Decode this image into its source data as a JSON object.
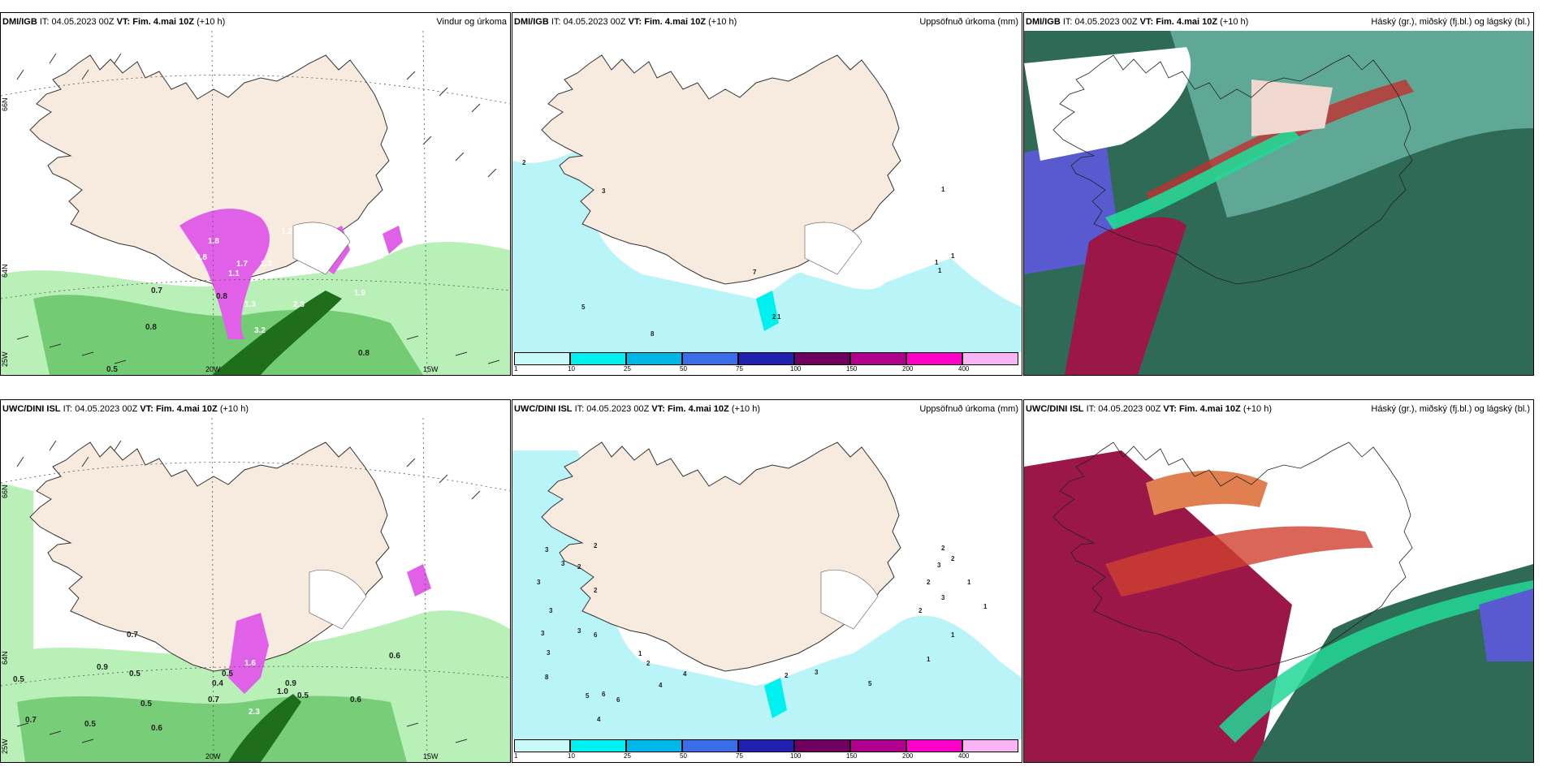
{
  "panels": [
    {
      "model": "DMI/IGB",
      "it_label": "IT:",
      "it": "04.05.2023 00Z",
      "vt_label": "VT:",
      "vt": "Fim. 4.mai 10Z",
      "lead": "(+10 h)",
      "title": "Vindur og úrkoma"
    },
    {
      "model": "DMI/IGB",
      "it_label": "IT:",
      "it": "04.05.2023 00Z",
      "vt_label": "VT:",
      "vt": "Fim. 4.mai 10Z",
      "lead": "(+10 h)",
      "title": "Uppsöfnuð úrkoma (mm)"
    },
    {
      "model": "DMI/IGB",
      "it_label": "IT:",
      "it": "04.05.2023 00Z",
      "vt_label": "VT:",
      "vt": "Fim. 4.mai 10Z",
      "lead": "(+10 h)",
      "title": "Háský (gr.), miðský (fj.bl.) og lágský (bl.)"
    },
    {
      "model": "UWC/DINI ISL",
      "it_label": "IT:",
      "it": "04.05.2023 00Z",
      "vt_label": "VT:",
      "vt": "Fim. 4.mai 10Z",
      "lead": "(+10 h)",
      "title": ""
    },
    {
      "model": "UWC/DINI ISL",
      "it_label": "IT:",
      "it": "04.05.2023 00Z",
      "vt_label": "VT:",
      "vt": "Fim. 4.mai 10Z",
      "lead": "(+10 h)",
      "title": "Uppsöfnuð úrkoma (mm)"
    },
    {
      "model": "UWC/DINI ISL",
      "it_label": "IT:",
      "it": "04.05.2023 00Z",
      "vt_label": "VT:",
      "vt": "Fim. 4.mai 10Z",
      "lead": "(+10 h)",
      "title": "Háský (gr.), miðský (fj.bl.) og lágský (bl.)"
    }
  ],
  "axis_labels": {
    "lat66": "66N",
    "lat64": "64N",
    "lon25": "25W",
    "lon20": "20W",
    "lon15": "15W"
  },
  "colorbar": {
    "colors": [
      "#c8fafa",
      "#00f0f0",
      "#00b8e8",
      "#3a6ee8",
      "#2020b0",
      "#700060",
      "#b0008c",
      "#ff00c8",
      "#f8b4f4"
    ],
    "ticks": [
      "1",
      "10",
      "25",
      "50",
      "75",
      "100",
      "150",
      "200",
      "400"
    ]
  },
  "wind_labels_top": [
    "0.7",
    "0.8",
    "0.8",
    "0.5",
    "0.8",
    "1.7",
    "1.3",
    "1.2",
    "1.8",
    "0.8",
    "0.7",
    "1.1",
    "2.3",
    "1.3",
    "3.2",
    "1.9"
  ],
  "wind_labels_bottom": [
    "0.7",
    "0.9",
    "0.5",
    "0.5",
    "0.5",
    "0.6",
    "0.7",
    "0.5",
    "0.6",
    "0.7",
    "0.6",
    "0.5",
    "1.0",
    "0.9",
    "1.6",
    "0.5",
    "2.3",
    "0.4"
  ],
  "accum_labels_top": [
    "2",
    "3",
    "7",
    "5",
    "8",
    "1",
    "2",
    "1",
    "1",
    "1",
    "1"
  ],
  "accum_labels_bottom": [
    "3",
    "3",
    "3",
    "2",
    "2",
    "3",
    "3",
    "2",
    "3",
    "3",
    "6",
    "1",
    "2",
    "4",
    "4",
    "6",
    "5",
    "6",
    "8",
    "4",
    "2",
    "2",
    "3",
    "2",
    "2",
    "2",
    "3",
    "1",
    "1",
    "1",
    "1",
    "3",
    "5"
  ],
  "colors": {
    "land": "#f7ebdf",
    "precip_light": "#b8f0b8",
    "precip_mid": "#6cc86c",
    "precip_dark": "#1e6e1e",
    "magenta": "#e060e8",
    "cyan_light": "#b8f4f8",
    "cloud_dark": "#2e6a55",
    "cloud_teal": "#5fa896",
    "cloud_red": "#9b1747",
    "cloud_blue": "#5a5ad0",
    "cloud_green": "#22d898"
  }
}
